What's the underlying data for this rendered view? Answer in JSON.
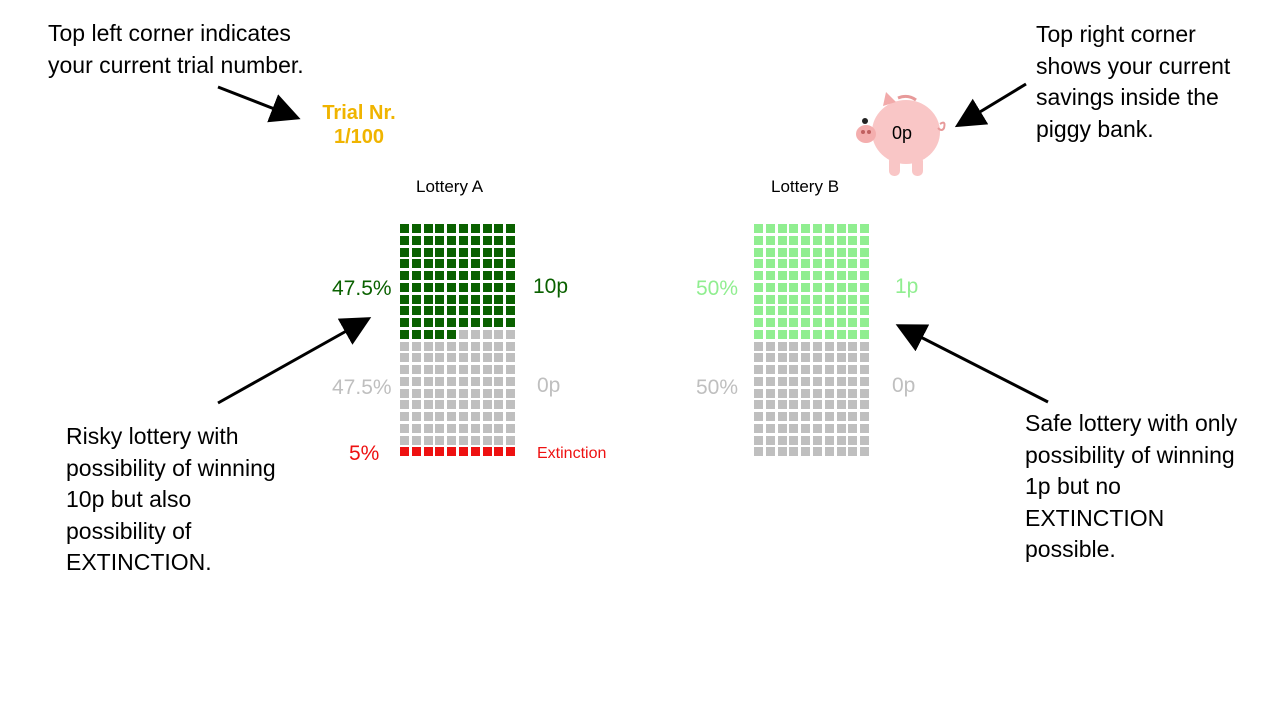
{
  "annotations": {
    "top_left": "Top left corner indicates your current trial number.",
    "top_right": "Top right corner shows your current savings inside the piggy bank.",
    "bottom_left": "Risky lottery with possibility of winning 10p but also possibility of EXTINCTION.",
    "bottom_right": "Safe lottery with only possibility of winning 1p but no EXTINCTION possible."
  },
  "trial": {
    "label": "Trial Nr.",
    "counter": "1/100",
    "color": "#f0b400"
  },
  "savings": {
    "amount": "0p"
  },
  "lottery_a": {
    "title": "Lottery A",
    "outcomes": [
      {
        "prob": "47.5%",
        "value": "10p",
        "cells": 95,
        "color": "#0a6100"
      },
      {
        "prob": "47.5%",
        "value": "0p",
        "cells": 95,
        "color": "#bfbfbf"
      },
      {
        "prob": "5%",
        "value": "Extinction",
        "cells": 10,
        "color": "#ee1111"
      }
    ]
  },
  "lottery_b": {
    "title": "Lottery B",
    "outcomes": [
      {
        "prob": "50%",
        "value": "1p",
        "cells": 100,
        "color": "#90ee90"
      },
      {
        "prob": "50%",
        "value": "0p",
        "cells": 100,
        "color": "#bfbfbf"
      }
    ]
  }
}
